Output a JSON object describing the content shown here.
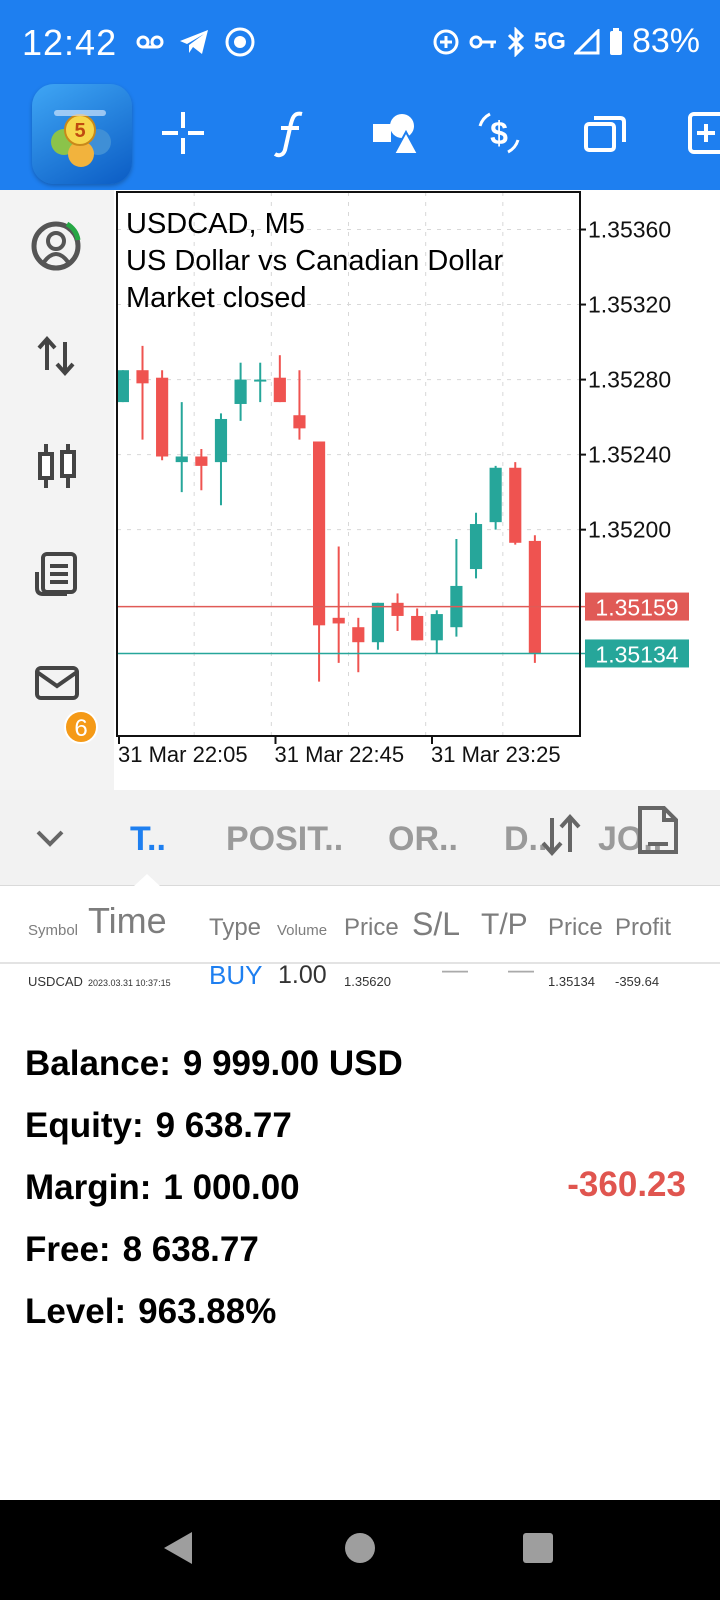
{
  "status_bar": {
    "time": "12:42",
    "network": "5G",
    "battery": "83%"
  },
  "toolbar": {
    "app_logo_digit": "5",
    "buttons": [
      "crosshair-icon",
      "function-icon",
      "objects-icon",
      "trade-icon",
      "windows-icon",
      "add-icon"
    ]
  },
  "sidebar": {
    "items": [
      "account-icon",
      "quotes-icon",
      "chart-icon",
      "journal-icon",
      "mail-icon"
    ],
    "mail_badge": "6"
  },
  "chart_data": {
    "type": "candlestick",
    "symbol_line": "USDCAD, M5",
    "description": "US Dollar vs Canadian Dollar",
    "status": "Market closed",
    "ylim": [
      1.3509,
      1.3538
    ],
    "y_ticks": [
      "1.35360",
      "1.35320",
      "1.35280",
      "1.35240",
      "1.35200"
    ],
    "x_ticks": [
      "31 Mar 22:05",
      "31 Mar 22:45",
      "31 Mar 23:25"
    ],
    "lines": [
      {
        "label": "1.35159",
        "value": 1.35159,
        "color": "#e05a56"
      },
      {
        "label": "1.35134",
        "value": 1.35134,
        "color": "#26a69a"
      }
    ],
    "candles": [
      {
        "o": 1.35268,
        "h": 1.35285,
        "l": 1.35268,
        "c": 1.35285
      },
      {
        "o": 1.35285,
        "h": 1.35298,
        "l": 1.35248,
        "c": 1.35278
      },
      {
        "o": 1.35281,
        "h": 1.35285,
        "l": 1.35237,
        "c": 1.35239
      },
      {
        "o": 1.35236,
        "h": 1.35268,
        "l": 1.3522,
        "c": 1.35239
      },
      {
        "o": 1.35239,
        "h": 1.35243,
        "l": 1.35221,
        "c": 1.35234
      },
      {
        "o": 1.35236,
        "h": 1.35262,
        "l": 1.35213,
        "c": 1.35259
      },
      {
        "o": 1.35267,
        "h": 1.35289,
        "l": 1.35258,
        "c": 1.3528
      },
      {
        "o": 1.35279,
        "h": 1.35289,
        "l": 1.35268,
        "c": 1.3528
      },
      {
        "o": 1.35281,
        "h": 1.35293,
        "l": 1.35268,
        "c": 1.35268
      },
      {
        "o": 1.35261,
        "h": 1.35285,
        "l": 1.35248,
        "c": 1.35254
      },
      {
        "o": 1.35247,
        "h": 1.35247,
        "l": 1.35119,
        "c": 1.35149
      },
      {
        "o": 1.35153,
        "h": 1.35191,
        "l": 1.35129,
        "c": 1.3515
      },
      {
        "o": 1.35148,
        "h": 1.35153,
        "l": 1.35124,
        "c": 1.3514
      },
      {
        "o": 1.3514,
        "h": 1.35161,
        "l": 1.35136,
        "c": 1.35161
      },
      {
        "o": 1.35161,
        "h": 1.35166,
        "l": 1.35146,
        "c": 1.35154
      },
      {
        "o": 1.35154,
        "h": 1.35158,
        "l": 1.35141,
        "c": 1.35141
      },
      {
        "o": 1.35141,
        "h": 1.35157,
        "l": 1.35134,
        "c": 1.35155
      },
      {
        "o": 1.35148,
        "h": 1.35195,
        "l": 1.35143,
        "c": 1.3517
      },
      {
        "o": 1.35179,
        "h": 1.35209,
        "l": 1.35174,
        "c": 1.35203
      },
      {
        "o": 1.35204,
        "h": 1.35234,
        "l": 1.352,
        "c": 1.35233
      },
      {
        "o": 1.35233,
        "h": 1.35236,
        "l": 1.35192,
        "c": 1.35193
      },
      {
        "o": 1.35194,
        "h": 1.35197,
        "l": 1.35129,
        "c": 1.35134
      }
    ]
  },
  "tabs": {
    "items": [
      {
        "label": "T..",
        "active": true
      },
      {
        "label": "POSIT..",
        "active": false
      },
      {
        "label": "OR..",
        "active": false
      },
      {
        "label": "D..",
        "active": false
      },
      {
        "label": "JO..",
        "active": false
      }
    ]
  },
  "table": {
    "headers": {
      "symbol": "Symbol",
      "time": "Time",
      "type": "Type",
      "volume": "Volume",
      "price": "Price",
      "sl": "S/L",
      "tp": "T/P",
      "price2": "Price",
      "profit": "Profit"
    },
    "rows": [
      {
        "symbol": "USDCAD",
        "time": "2023.03.31 10:37:15",
        "type": "BUY",
        "volume": "1.00",
        "price": "1.35620",
        "sl": "—",
        "tp": "—",
        "price2": "1.35134",
        "profit": "-359.64"
      }
    ]
  },
  "account": {
    "balance_label": "Balance:",
    "balance_value": "9 999.00 USD",
    "equity_label": "Equity:",
    "equity_value": "9 638.77",
    "margin_label": "Margin:",
    "margin_value": "1 000.00",
    "free_label": "Free:",
    "free_value": "8 638.77",
    "level_label": "Level:",
    "level_value": "963.88%",
    "total_profit": "-360.23"
  },
  "colors": {
    "accent": "#1e7ff0",
    "bull": "#26a69a",
    "bear": "#ef5350",
    "negative": "#e0554f"
  }
}
